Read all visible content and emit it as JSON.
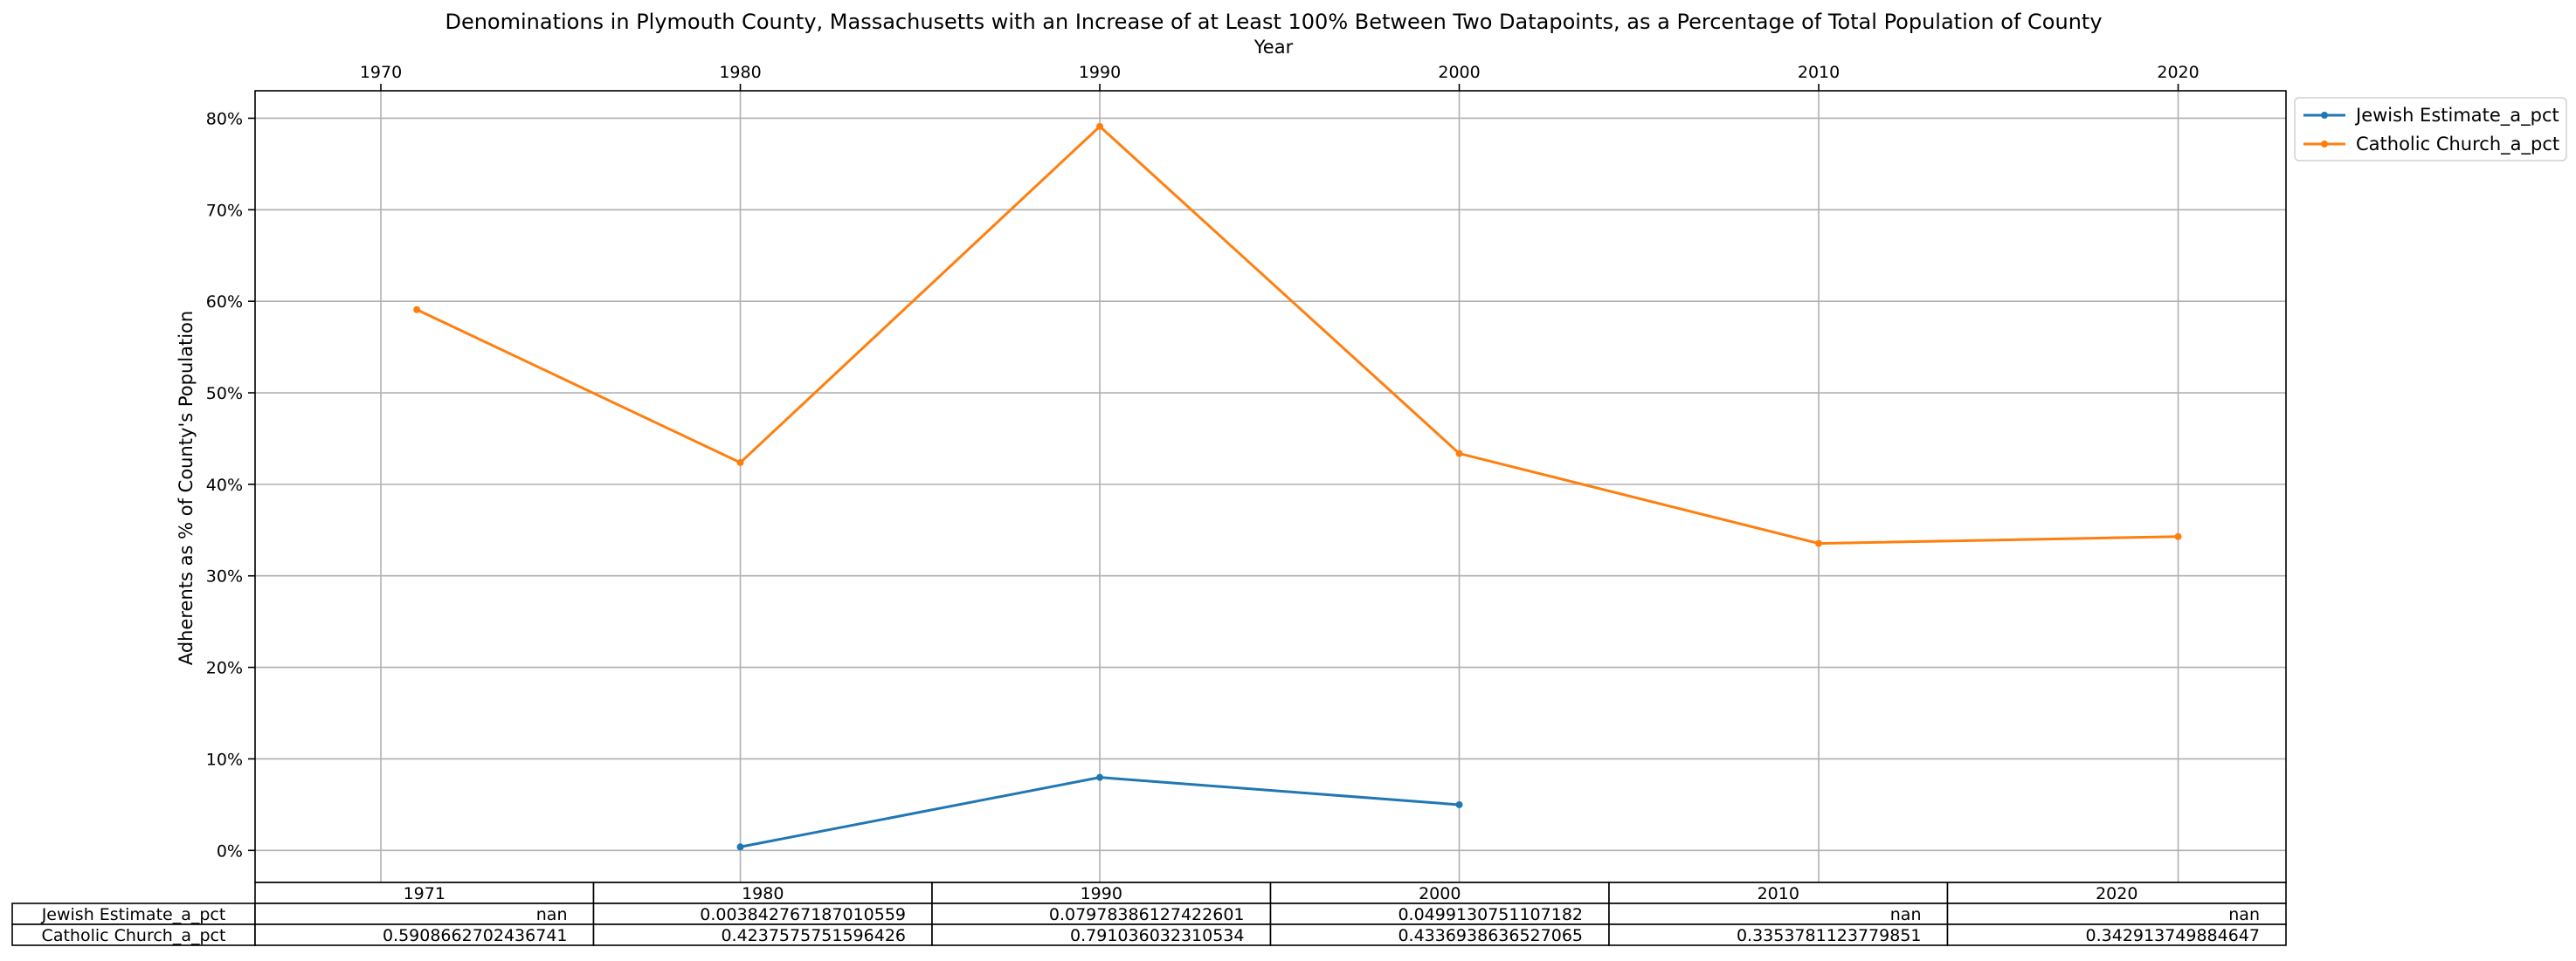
{
  "chart_data": {
    "type": "line",
    "title": "Denominations in Plymouth County, Massachusetts with an Increase of at Least 100% Between Two Datapoints, as a Percentage of Total Population of County",
    "xlabel": "Year",
    "ylabel": "Adherents as % of County's Population",
    "xlim": [
      1966.5,
      2023
    ],
    "ylim": [
      -0.035,
      0.83
    ],
    "x_ticks": [
      1970,
      1980,
      1990,
      2000,
      2010,
      2020
    ],
    "y_ticks": [
      0,
      0.1,
      0.2,
      0.3,
      0.4,
      0.5,
      0.6,
      0.7,
      0.8
    ],
    "y_tick_labels": [
      "0%",
      "10%",
      "20%",
      "30%",
      "40%",
      "50%",
      "60%",
      "70%",
      "80%"
    ],
    "x_axis_position": "top",
    "grid": true,
    "legend_position": "outside-top-right",
    "x": [
      1971,
      1980,
      1990,
      2000,
      2010,
      2020
    ],
    "series": [
      {
        "name": "Jewish Estimate_a_pct",
        "color": "#1f77b4",
        "values": [
          null,
          0.003842767187010559,
          0.07978386127422601,
          0.0499130751107182,
          null,
          null
        ]
      },
      {
        "name": "Catholic Church_a_pct",
        "color": "#ff7f0e",
        "values": [
          0.5908662702436741,
          0.4237575751596426,
          0.791036032310534,
          0.4336938636527065,
          0.3353781123779851,
          0.342913749884647
        ]
      }
    ],
    "table": {
      "columns": [
        "1971",
        "1980",
        "1990",
        "2000",
        "2010",
        "2020"
      ],
      "rows": [
        {
          "label": "Jewish Estimate_a_pct",
          "cells": [
            "nan",
            "0.003842767187010559",
            "0.07978386127422601",
            "0.0499130751107182",
            "nan",
            "nan"
          ]
        },
        {
          "label": "Catholic Church_a_pct",
          "cells": [
            "0.5908662702436741",
            "0.4237575751596426",
            "0.791036032310534",
            "0.4336938636527065",
            "0.3353781123779851",
            "0.342913749884647"
          ]
        }
      ]
    }
  }
}
